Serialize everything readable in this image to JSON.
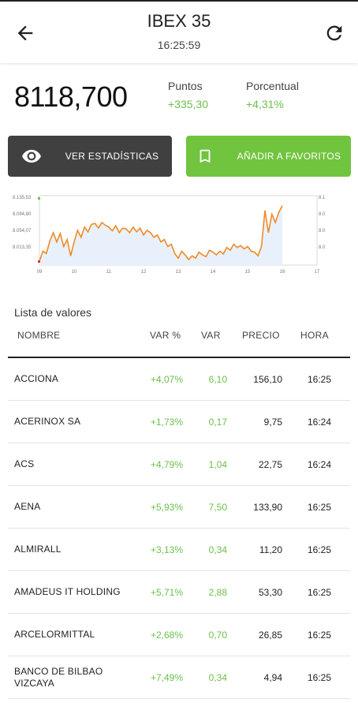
{
  "header": {
    "title": "IBEX 35",
    "time": "16:25:59",
    "icons": {
      "back": "arrow-left-icon",
      "refresh": "refresh-icon"
    }
  },
  "summary": {
    "price": "8118,700",
    "points_label": "Puntos",
    "points_value": "+335,30",
    "percent_label": "Porcentual",
    "percent_value": "+4,31%"
  },
  "buttons": {
    "stats_label": "VER ESTADÍSTICAS",
    "favorites_label": "AÑADIR A FAVORITOS"
  },
  "chart_data": {
    "type": "area",
    "x_ticks": [
      "09",
      "10",
      "11",
      "12",
      "13",
      "14",
      "15",
      "16",
      "17"
    ],
    "y_ticks": [
      "8.135,53",
      "8.094,80",
      "8.054,07",
      "8.013,35"
    ],
    "xlim": [
      9,
      17
    ],
    "ylim": [
      7990,
      8140
    ],
    "color": "#f08a24",
    "fill": "#e8f1fb",
    "x": [
      9.0,
      9.1,
      9.2,
      9.3,
      9.4,
      9.5,
      9.6,
      9.7,
      9.8,
      9.9,
      10.0,
      10.1,
      10.2,
      10.3,
      10.4,
      10.5,
      10.6,
      10.7,
      10.8,
      10.9,
      11.0,
      11.1,
      11.2,
      11.3,
      11.4,
      11.5,
      11.6,
      11.7,
      11.8,
      11.9,
      12.0,
      12.1,
      12.2,
      12.3,
      12.4,
      12.5,
      12.6,
      12.7,
      12.8,
      12.9,
      13.0,
      13.1,
      13.2,
      13.3,
      13.4,
      13.5,
      13.6,
      13.7,
      13.8,
      13.9,
      14.0,
      14.1,
      14.2,
      14.3,
      14.4,
      14.5,
      14.6,
      14.7,
      14.8,
      14.9,
      15.0,
      15.1,
      15.2,
      15.3,
      15.4,
      15.5,
      15.6,
      15.7,
      15.8,
      15.9,
      16.0
    ],
    "values": [
      7998,
      8020,
      8015,
      8042,
      8060,
      8040,
      8058,
      8030,
      8045,
      8010,
      8040,
      8065,
      8050,
      8072,
      8062,
      8078,
      8080,
      8070,
      8082,
      8076,
      8072,
      8064,
      8075,
      8060,
      8070,
      8068,
      8060,
      8072,
      8062,
      8070,
      8055,
      8065,
      8060,
      8050,
      8055,
      8040,
      8045,
      8030,
      8035,
      8015,
      8005,
      8020,
      8012,
      8002,
      8010,
      8005,
      8018,
      8012,
      8008,
      8022,
      8018,
      8012,
      8020,
      8014,
      8028,
      8022,
      8035,
      8028,
      8032,
      8025,
      8030,
      8020,
      8018,
      8010,
      8030,
      8108,
      8060,
      8100,
      8082,
      8104,
      8118
    ],
    "grid": false
  },
  "list": {
    "title": "Lista de valores",
    "columns": [
      "NOMBRE",
      "VAR %",
      "VAR",
      "PRECIO",
      "HORA"
    ],
    "rows": [
      {
        "name": "ACCIONA",
        "pct": "+4,07%",
        "var": "6,10",
        "price": "156,10",
        "time": "16:25"
      },
      {
        "name": "ACERINOX SA",
        "pct": "+1,73%",
        "var": "0,17",
        "price": "9,75",
        "time": "16:24"
      },
      {
        "name": "ACS",
        "pct": "+4,79%",
        "var": "1,04",
        "price": "22,75",
        "time": "16:24"
      },
      {
        "name": "AENA",
        "pct": "+5,93%",
        "var": "7,50",
        "price": "133,90",
        "time": "16:25"
      },
      {
        "name": "ALMIRALL",
        "pct": "+3,13%",
        "var": "0,34",
        "price": "11,20",
        "time": "16:25"
      },
      {
        "name": "AMADEUS IT HOLDING",
        "pct": "+5,71%",
        "var": "2,88",
        "price": "53,30",
        "time": "16:25"
      },
      {
        "name": "ARCELORMITTAL",
        "pct": "+2,68%",
        "var": "0,70",
        "price": "26,85",
        "time": "16:25"
      },
      {
        "name": "BANCO DE BILBAO VIZCAYA",
        "pct": "+7,49%",
        "var": "0,34",
        "price": "4,94",
        "time": "16:25"
      }
    ]
  }
}
